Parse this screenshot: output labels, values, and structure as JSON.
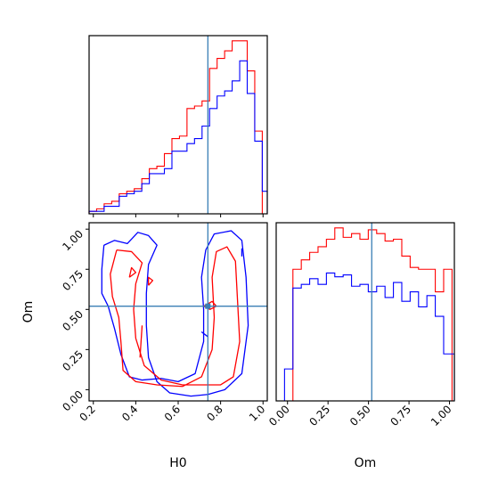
{
  "chart_data": [
    {
      "type": "histogram",
      "panel": "H0 marginal",
      "xlim": [
        0.18,
        1.02
      ],
      "truth": 0.74,
      "bin_edges": [
        0.18,
        0.2155,
        0.251,
        0.2865,
        0.322,
        0.3575,
        0.393,
        0.4285,
        0.464,
        0.4995,
        0.535,
        0.5705,
        0.606,
        0.6415,
        0.677,
        0.7125,
        0.748,
        0.7835,
        0.819,
        0.8545,
        0.89,
        0.9255,
        0.961,
        0.9965,
        1.02
      ],
      "series": [
        {
          "name": "red",
          "color": "#ff0000",
          "values": [
            1,
            2,
            4,
            5,
            8,
            9,
            10,
            14,
            18,
            19,
            24,
            30,
            31,
            42,
            43,
            45,
            58,
            62,
            65,
            69,
            69,
            57,
            33,
            0
          ]
        },
        {
          "name": "blue",
          "color": "#0000ff",
          "values": [
            1,
            1,
            3,
            3,
            7,
            8,
            9,
            12,
            16,
            16,
            18,
            25,
            25,
            28,
            30,
            35,
            42,
            47,
            49,
            53,
            61,
            48,
            29,
            9
          ]
        }
      ]
    },
    {
      "type": "contour",
      "panel": "H0 vs Om",
      "xlabel": "H0",
      "ylabel": "Om",
      "xlim": [
        0.18,
        1.02
      ],
      "ylim": [
        -0.07,
        1.04
      ],
      "xticks": [
        "0.2",
        "0.4",
        "0.6",
        "0.8",
        "1.0"
      ],
      "yticks": [
        "0.00",
        "0.25",
        "0.50",
        "0.75",
        "1.00"
      ],
      "truth": {
        "x": 0.74,
        "y": 0.52
      },
      "series": [
        {
          "name": "blue",
          "color": "#0000ff",
          "contours": [
            [
              [
                0.25,
                0.9
              ],
              [
                0.3,
                0.93
              ],
              [
                0.36,
                0.91
              ],
              [
                0.41,
                0.98
              ],
              [
                0.46,
                0.96
              ],
              [
                0.5,
                0.9
              ],
              [
                0.46,
                0.78
              ],
              [
                0.45,
                0.6
              ],
              [
                0.45,
                0.4
              ],
              [
                0.46,
                0.2
              ],
              [
                0.5,
                0.05
              ],
              [
                0.56,
                -0.02
              ],
              [
                0.66,
                -0.04
              ],
              [
                0.74,
                -0.03
              ],
              [
                0.82,
                0.0
              ],
              [
                0.9,
                0.1
              ],
              [
                0.93,
                0.4
              ],
              [
                0.92,
                0.7
              ],
              [
                0.9,
                0.93
              ],
              [
                0.85,
                0.99
              ],
              [
                0.77,
                0.97
              ],
              [
                0.73,
                0.87
              ],
              [
                0.71,
                0.7
              ],
              [
                0.72,
                0.5
              ],
              [
                0.72,
                0.3
              ],
              [
                0.68,
                0.1
              ],
              [
                0.6,
                0.05
              ],
              [
                0.52,
                0.07
              ],
              [
                0.43,
                0.06
              ],
              [
                0.37,
                0.08
              ],
              [
                0.33,
                0.22
              ],
              [
                0.3,
                0.38
              ],
              [
                0.27,
                0.52
              ],
              [
                0.24,
                0.6
              ],
              [
                0.24,
                0.75
              ],
              [
                0.25,
                0.9
              ]
            ],
            [
              [
                0.9,
                0.83
              ],
              [
                0.9,
                0.88
              ]
            ],
            [
              [
                0.71,
                0.36
              ],
              [
                0.74,
                0.33
              ]
            ]
          ]
        },
        {
          "name": "red",
          "color": "#ff0000",
          "contours": [
            [
              [
                0.31,
                0.87
              ],
              [
                0.38,
                0.86
              ],
              [
                0.43,
                0.79
              ],
              [
                0.4,
                0.66
              ],
              [
                0.39,
                0.5
              ],
              [
                0.4,
                0.32
              ],
              [
                0.44,
                0.15
              ],
              [
                0.52,
                0.06
              ],
              [
                0.62,
                0.03
              ],
              [
                0.72,
                0.03
              ],
              [
                0.8,
                0.03
              ],
              [
                0.86,
                0.08
              ],
              [
                0.89,
                0.3
              ],
              [
                0.88,
                0.55
              ],
              [
                0.87,
                0.8
              ],
              [
                0.83,
                0.89
              ],
              [
                0.78,
                0.86
              ],
              [
                0.76,
                0.7
              ],
              [
                0.77,
                0.45
              ],
              [
                0.76,
                0.25
              ],
              [
                0.71,
                0.08
              ],
              [
                0.62,
                0.02
              ],
              [
                0.5,
                0.03
              ],
              [
                0.4,
                0.05
              ],
              [
                0.34,
                0.12
              ],
              [
                0.33,
                0.3
              ],
              [
                0.32,
                0.45
              ],
              [
                0.29,
                0.58
              ],
              [
                0.28,
                0.72
              ],
              [
                0.31,
                0.87
              ]
            ],
            [
              [
                0.37,
                0.7
              ],
              [
                0.4,
                0.73
              ],
              [
                0.38,
                0.76
              ],
              [
                0.37,
                0.7
              ]
            ],
            [
              [
                0.46,
                0.65
              ],
              [
                0.48,
                0.68
              ],
              [
                0.46,
                0.7
              ],
              [
                0.46,
                0.65
              ]
            ],
            [
              [
                0.42,
                0.2
              ],
              [
                0.43,
                0.4
              ]
            ],
            [
              [
                0.72,
                0.52
              ],
              [
                0.76,
                0.55
              ],
              [
                0.78,
                0.52
              ],
              [
                0.75,
                0.5
              ],
              [
                0.72,
                0.52
              ]
            ]
          ]
        }
      ]
    },
    {
      "type": "histogram",
      "panel": "Om marginal",
      "xlabel": "Om",
      "xlim": [
        -0.07,
        1.03
      ],
      "xticks": [
        "0.00",
        "0.25",
        "0.50",
        "0.75",
        "1.00"
      ],
      "truth": 0.52,
      "bin_edges": [
        -0.07,
        -0.0184,
        0.0333,
        0.085,
        0.1367,
        0.1884,
        0.2401,
        0.2918,
        0.3435,
        0.3952,
        0.4469,
        0.4986,
        0.5503,
        0.602,
        0.6537,
        0.7054,
        0.7571,
        0.8088,
        0.8605,
        0.9122,
        0.9639,
        1.0156,
        1.03
      ],
      "series": [
        {
          "name": "red",
          "color": "#ff0000",
          "values": [
            0,
            0,
            70,
            75,
            79,
            82,
            86,
            92,
            87,
            89,
            86,
            91,
            89,
            85,
            86,
            77,
            71,
            70,
            70,
            58,
            70,
            0
          ]
        },
        {
          "name": "blue",
          "color": "#0000ff",
          "values": [
            0,
            17,
            60,
            62,
            65,
            62,
            68,
            66,
            67,
            61,
            62,
            58,
            61,
            55,
            63,
            53,
            58,
            50,
            56,
            45,
            25,
            25
          ]
        }
      ]
    }
  ]
}
